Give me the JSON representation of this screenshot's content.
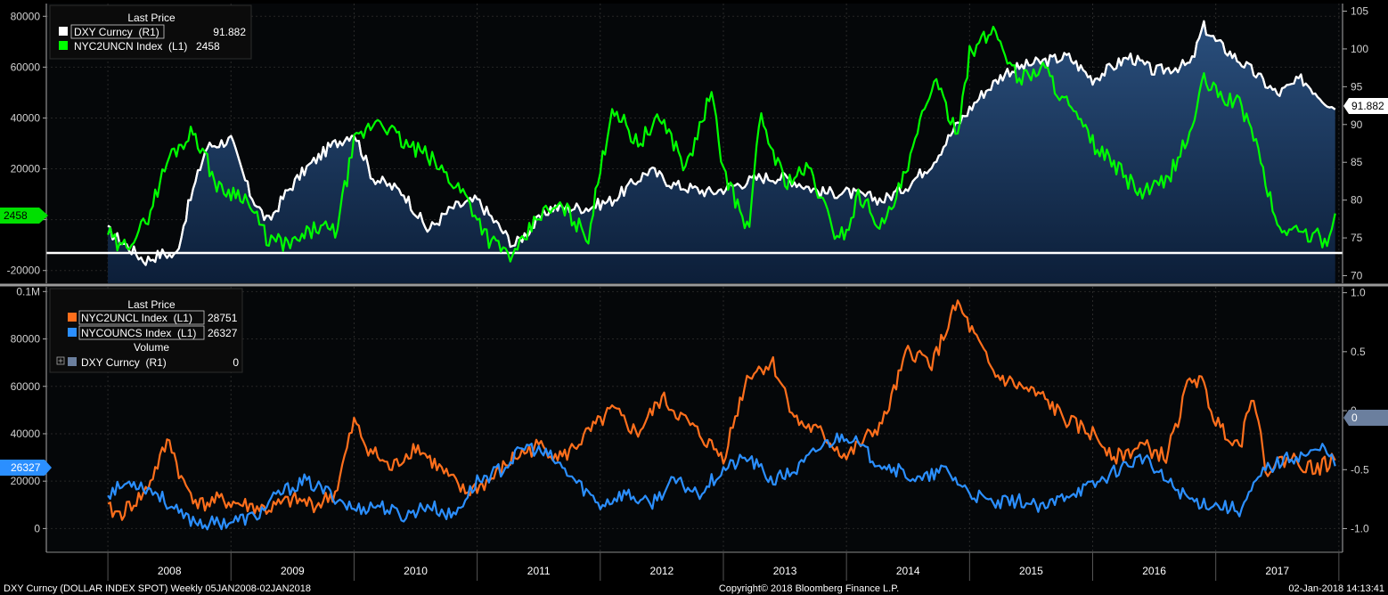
{
  "chart_data": [
    {
      "type": "line",
      "panel": "top",
      "legend_title": "Last Price",
      "legend_placement": "top-left",
      "x_labels": [
        "2008",
        "2009",
        "2010",
        "2011",
        "2012",
        "2013",
        "2014",
        "2015",
        "2016",
        "2017"
      ],
      "left_axis": {
        "ylim": [
          -25000,
          85000
        ],
        "ticks": [
          -20000,
          0,
          20000,
          40000,
          60000,
          80000
        ],
        "tick_labels": [
          "-20000",
          "0",
          "20000",
          "40000",
          "60000",
          "80000"
        ]
      },
      "right_axis": {
        "ylim": [
          69,
          106
        ],
        "ticks": [
          70,
          75,
          80,
          85,
          90,
          95,
          100,
          105
        ],
        "tick_labels": [
          "70",
          "75",
          "80",
          "85",
          "90",
          "95",
          "100",
          "105"
        ]
      },
      "series": [
        {
          "name": "DXY Curncy  (R1)",
          "value_label": "91.882",
          "axis": "right",
          "color": "#ffffff",
          "style": "area",
          "x": [
            2008.0,
            2008.15,
            2008.3,
            2008.45,
            2008.55,
            2008.65,
            2008.8,
            2009.0,
            2009.15,
            2009.3,
            2009.45,
            2009.6,
            2009.8,
            2010.0,
            2010.15,
            2010.4,
            2010.6,
            2010.8,
            2011.0,
            2011.3,
            2011.6,
            2011.9,
            2012.1,
            2012.4,
            2012.6,
            2012.9,
            2013.1,
            2013.3,
            2013.5,
            2013.8,
            2014.0,
            2014.3,
            2014.5,
            2014.7,
            2014.9,
            2015.1,
            2015.3,
            2015.5,
            2015.8,
            2016.0,
            2016.3,
            2016.5,
            2016.8,
            2016.9,
            2017.0,
            2017.3,
            2017.5,
            2017.7,
            2017.97
          ],
          "values": [
            76,
            74,
            72,
            73,
            72.5,
            79,
            87,
            88,
            81,
            77,
            81,
            84,
            87,
            89,
            83,
            81,
            76,
            79,
            80,
            74,
            79,
            79,
            80,
            84,
            82,
            81,
            82,
            83,
            83,
            81,
            81,
            80,
            82,
            85,
            90,
            94,
            97,
            98,
            99,
            96,
            99,
            97,
            98,
            103,
            101,
            97,
            94,
            96,
            92
          ]
        },
        {
          "name": "NYC2UNCN Index  (L1)",
          "value_label": "2458",
          "axis": "left",
          "color": "#00ff00",
          "style": "line",
          "x": [
            2008.0,
            2008.1,
            2008.3,
            2008.5,
            2008.7,
            2008.9,
            2009.1,
            2009.3,
            2009.5,
            2009.7,
            2009.85,
            2010.0,
            2010.2,
            2010.4,
            2010.6,
            2010.9,
            2011.1,
            2011.3,
            2011.5,
            2011.7,
            2011.9,
            2012.1,
            2012.3,
            2012.5,
            2012.7,
            2012.9,
            2013.0,
            2013.2,
            2013.3,
            2013.5,
            2013.7,
            2013.9,
            2014.0,
            2014.1,
            2014.3,
            2014.5,
            2014.7,
            2014.9,
            2015.0,
            2015.2,
            2015.4,
            2015.6,
            2015.8,
            2016.0,
            2016.2,
            2016.4,
            2016.6,
            2016.8,
            2016.9,
            2017.0,
            2017.2,
            2017.3,
            2017.5,
            2017.7,
            2017.9,
            2017.97
          ],
          "values": [
            -5000,
            -12000,
            -2000,
            25000,
            35000,
            12000,
            10000,
            -8000,
            -10000,
            -3000,
            -5000,
            30000,
            40000,
            30000,
            25000,
            10000,
            -8000,
            -15000,
            2000,
            5000,
            -7000,
            45000,
            30000,
            40000,
            20000,
            50000,
            20000,
            -5000,
            40000,
            15000,
            20000,
            -5000,
            -5000,
            10000,
            -3000,
            20000,
            55000,
            35000,
            65000,
            75000,
            55000,
            60000,
            45000,
            30000,
            20000,
            10000,
            15000,
            35000,
            55000,
            50000,
            45000,
            35000,
            -3000,
            -5000,
            -8000,
            2458
          ]
        }
      ]
    },
    {
      "type": "line",
      "panel": "bottom",
      "legend_title": "Last Price",
      "legend_sub_title": "Volume",
      "legend_placement": "top-left",
      "left_axis": {
        "ylim": [
          -10000,
          102000
        ],
        "ticks": [
          0,
          20000,
          40000,
          60000,
          80000,
          100000
        ],
        "tick_labels": [
          "0",
          "20000",
          "40000",
          "60000",
          "80000",
          "0.1M"
        ]
      },
      "right_axis": {
        "ylim": [
          -1.2,
          1.05
        ],
        "ticks": [
          -1.0,
          -0.5,
          0,
          0.5,
          1.0
        ],
        "tick_labels": [
          "-1.0",
          "-0.5",
          "0",
          "0.5",
          "1.0"
        ]
      },
      "series": [
        {
          "name": "NYC2UNCL Index  (L1)",
          "value_label": "28751",
          "axis": "left",
          "color": "#ff6f1c",
          "style": "line",
          "x": [
            2008.0,
            2008.1,
            2008.3,
            2008.5,
            2008.6,
            2008.75,
            2008.9,
            2009.1,
            2009.3,
            2009.5,
            2009.7,
            2009.85,
            2010.0,
            2010.1,
            2010.3,
            2010.5,
            2010.7,
            2010.9,
            2011.1,
            2011.3,
            2011.5,
            2011.7,
            2011.9,
            2012.1,
            2012.3,
            2012.5,
            2012.7,
            2012.9,
            2013.0,
            2013.2,
            2013.4,
            2013.6,
            2013.8,
            2014.0,
            2014.1,
            2014.3,
            2014.5,
            2014.7,
            2014.9,
            2015.0,
            2015.2,
            2015.4,
            2015.6,
            2015.8,
            2016.0,
            2016.2,
            2016.4,
            2016.6,
            2016.8,
            2016.9,
            2017.0,
            2017.2,
            2017.3,
            2017.4,
            2017.6,
            2017.8,
            2017.97
          ],
          "values": [
            8000,
            6000,
            15000,
            38000,
            20000,
            10000,
            12000,
            10000,
            8000,
            12000,
            10000,
            15000,
            45000,
            35000,
            25000,
            35000,
            25000,
            15000,
            20000,
            30000,
            35000,
            30000,
            40000,
            50000,
            40000,
            55000,
            45000,
            35000,
            30000,
            65000,
            70000,
            45000,
            40000,
            30000,
            35000,
            45000,
            75000,
            70000,
            95000,
            85000,
            65000,
            60000,
            55000,
            45000,
            40000,
            30000,
            35000,
            30000,
            65000,
            60000,
            45000,
            35000,
            60000,
            25000,
            30000,
            25000,
            28751
          ]
        },
        {
          "name": "NYCOUNCS Index  (L1)",
          "value_label": "26327",
          "axis": "left",
          "color": "#2b8fff",
          "style": "line",
          "x": [
            2008.0,
            2008.2,
            2008.4,
            2008.6,
            2008.8,
            2009.0,
            2009.2,
            2009.4,
            2009.6,
            2009.8,
            2010.0,
            2010.2,
            2010.4,
            2010.6,
            2010.8,
            2011.0,
            2011.2,
            2011.4,
            2011.6,
            2011.8,
            2012.0,
            2012.2,
            2012.4,
            2012.6,
            2012.8,
            2013.0,
            2013.2,
            2013.4,
            2013.6,
            2013.8,
            2014.0,
            2014.2,
            2014.4,
            2014.6,
            2014.8,
            2015.0,
            2015.2,
            2015.4,
            2015.6,
            2015.8,
            2016.0,
            2016.2,
            2016.4,
            2016.6,
            2016.8,
            2017.0,
            2017.2,
            2017.4,
            2017.6,
            2017.8,
            2017.9,
            2017.97
          ],
          "values": [
            15000,
            20000,
            15000,
            5000,
            2000,
            3000,
            5000,
            15000,
            20000,
            15000,
            8000,
            10000,
            5000,
            10000,
            5000,
            20000,
            25000,
            35000,
            30000,
            20000,
            10000,
            15000,
            10000,
            20000,
            15000,
            25000,
            30000,
            20000,
            25000,
            35000,
            40000,
            30000,
            25000,
            20000,
            25000,
            15000,
            10000,
            12000,
            8000,
            15000,
            18000,
            25000,
            30000,
            20000,
            12000,
            10000,
            8000,
            25000,
            30000,
            32000,
            35000,
            26327
          ]
        },
        {
          "name": "DXY Curncy  (R1)",
          "value_label": "0",
          "axis": "right",
          "color": "#6b7f9e",
          "style": "volume"
        }
      ]
    }
  ],
  "footer": {
    "left": "DXY Curncy (DOLLAR INDEX SPOT)  Weekly 05JAN2008-02JAN2018",
    "center": "Copyright© 2018 Bloomberg Finance L.P.",
    "right": "02-Jan-2018 14:13:41"
  }
}
